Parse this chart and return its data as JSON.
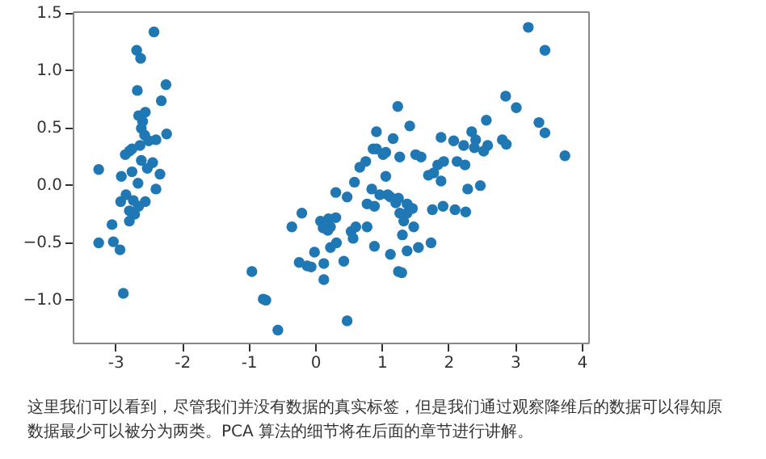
{
  "chart_data": {
    "type": "scatter",
    "x": [
      -2.42,
      -2.68,
      -2.62,
      -2.24,
      -2.67,
      -2.31,
      -2.55,
      -2.65,
      -2.59,
      -2.61,
      -2.23,
      -2.56,
      -2.39,
      -2.5,
      -2.63,
      -2.75,
      -2.79,
      -2.85,
      -2.61,
      -2.44,
      -2.52,
      -2.75,
      -3.25,
      -2.33,
      -2.91,
      -2.66,
      -2.39,
      -2.84,
      -2.92,
      -2.73,
      -2.55,
      -2.65,
      -2.79,
      -2.71,
      -2.79,
      -3.05,
      -3.25,
      -3.03,
      -2.93,
      -2.88,
      -0.95,
      -0.78,
      -0.74,
      -0.56,
      0.48,
      0.13,
      -0.24,
      -0.12,
      -0.06,
      -0.01,
      0.13,
      0.43,
      0.23,
      0.32,
      -0.35,
      -0.2,
      0.08,
      0.2,
      0.31,
      0.12,
      0.23,
      0.19,
      0.31,
      0.48,
      0.59,
      0.61,
      0.57,
      0.54,
      0.78,
      0.89,
      1.13,
      1.38,
      1.55,
      1.74,
      1.25,
      1.3,
      1.31,
      1.48,
      1.33,
      1.27,
      1.38,
      1.21,
      1.13,
      1.25,
      1.38,
      1.46,
      0.85,
      0.97,
      1.09,
      0.78,
      0.89,
      1.06,
      0.67,
      0.76,
      0.87,
      0.92,
      1.02,
      1.06,
      0.92,
      1.17,
      1.24,
      1.42,
      1.27,
      1.51,
      1.59,
      1.7,
      1.78,
      1.84,
      1.89,
      1.93,
      1.76,
      1.92,
      2.1,
      2.26,
      1.89,
      2.08,
      2.23,
      2.13,
      2.25,
      2.29,
      2.48,
      2.35,
      2.41,
      2.39,
      2.59,
      2.53,
      2.57,
      2.81,
      2.87,
      2.86,
      3.02,
      3.2,
      3.45,
      3.36,
      3.45,
      3.75
    ],
    "values": [
      1.33,
      1.17,
      1.1,
      0.87,
      0.82,
      0.73,
      0.63,
      0.6,
      0.55,
      0.49,
      0.44,
      0.43,
      0.39,
      0.38,
      0.34,
      0.31,
      0.29,
      0.26,
      0.21,
      0.19,
      0.14,
      0.11,
      0.13,
      0.09,
      0.07,
      0.01,
      -0.04,
      -0.09,
      -0.15,
      -0.14,
      -0.15,
      -0.19,
      -0.23,
      -0.26,
      -0.32,
      -0.35,
      -0.51,
      -0.5,
      -0.57,
      -0.95,
      -0.76,
      -1.0,
      -1.01,
      -1.27,
      -1.19,
      -0.83,
      -0.68,
      -0.71,
      -0.72,
      -0.59,
      -0.69,
      -0.67,
      -0.55,
      -0.51,
      -0.37,
      -0.25,
      -0.32,
      -0.3,
      -0.29,
      -0.38,
      -0.37,
      -0.4,
      -0.07,
      -0.11,
      0.02,
      -0.37,
      -0.47,
      -0.41,
      -0.37,
      -0.54,
      -0.61,
      -0.58,
      -0.55,
      -0.51,
      -0.76,
      -0.77,
      -0.44,
      -0.37,
      -0.32,
      -0.25,
      -0.25,
      -0.16,
      -0.11,
      -0.12,
      -0.17,
      -0.21,
      -0.04,
      -0.09,
      -0.09,
      -0.17,
      -0.19,
      0.07,
      0.15,
      0.2,
      0.31,
      0.31,
      0.26,
      0.28,
      0.46,
      0.4,
      0.68,
      0.51,
      0.24,
      0.26,
      0.24,
      0.08,
      0.1,
      0.17,
      0.03,
      0.2,
      -0.22,
      -0.19,
      -0.22,
      -0.24,
      0.41,
      0.38,
      0.34,
      0.2,
      0.17,
      -0.04,
      -0.01,
      0.46,
      0.39,
      0.32,
      0.34,
      0.29,
      0.56,
      0.39,
      0.35,
      0.77,
      0.67,
      1.37,
      1.17,
      0.54,
      0.45,
      0.25
    ],
    "color": "#1f77b4",
    "marker": "circle",
    "xlim": [
      -3.64,
      4.1
    ],
    "ylim": [
      -1.38,
      1.51
    ],
    "xticks": [
      -3,
      -2,
      -1,
      0,
      1,
      2,
      3,
      4
    ],
    "yticks": [
      {
        "value": -1,
        "label": "−1.0"
      },
      {
        "value": -0.5,
        "label": "−0.5"
      },
      {
        "value": 0,
        "label": "0.0"
      },
      {
        "value": 0.5,
        "label": "0.5"
      },
      {
        "value": 1,
        "label": "1.0"
      },
      {
        "value": 1.5,
        "label": "1.5"
      }
    ],
    "grid": false,
    "annotations": [
      "这里我们可以看到，尽管我们并没有数据的真实标签，但是我们通过观察降维后的数据可以得知原数据最少可以被分为两类。PCA 算法的细节将在后面的章节进行讲解。"
    ]
  }
}
